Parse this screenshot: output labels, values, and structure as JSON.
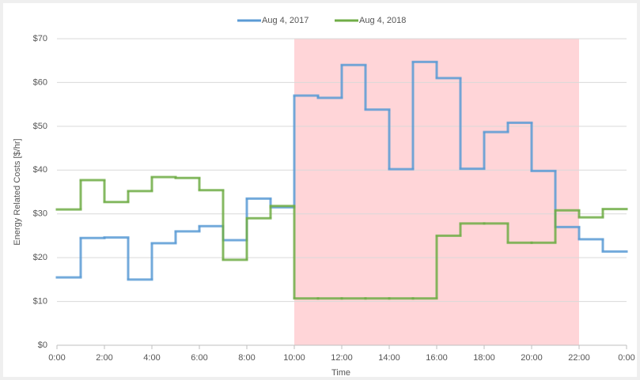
{
  "chart_data": {
    "type": "step",
    "x": [
      0,
      1,
      2,
      3,
      4,
      5,
      6,
      7,
      8,
      9,
      10,
      11,
      12,
      13,
      14,
      15,
      16,
      17,
      18,
      19,
      20,
      21,
      22,
      23
    ],
    "series": [
      {
        "name": "Aug 4, 2017",
        "color": "#5b9bd5",
        "values": [
          15.5,
          24.5,
          24.6,
          15,
          23.3,
          26,
          27.2,
          24,
          33.5,
          31.5,
          57,
          56.5,
          64,
          53.8,
          40.2,
          64.7,
          61,
          40.3,
          48.7,
          50.8,
          39.8,
          27,
          24.2,
          21.4
        ]
      },
      {
        "name": "Aug 4, 2018",
        "color": "#70ad47",
        "values": [
          31,
          37.7,
          32.7,
          35.2,
          38.4,
          38.2,
          35.4,
          19.5,
          29,
          31.8,
          10.7,
          10.7,
          10.7,
          10.7,
          10.7,
          10.7,
          25,
          27.8,
          27.8,
          23.4,
          23.4,
          30.8,
          29.2,
          31.1
        ]
      }
    ],
    "xlim": [
      0,
      24
    ],
    "xticks": [
      {
        "value": 0,
        "label": "0:00"
      },
      {
        "value": 2,
        "label": "2:00"
      },
      {
        "value": 4,
        "label": "4:00"
      },
      {
        "value": 6,
        "label": "6:00"
      },
      {
        "value": 8,
        "label": "8:00"
      },
      {
        "value": 10,
        "label": "10:00"
      },
      {
        "value": 12,
        "label": "12:00"
      },
      {
        "value": 14,
        "label": "14:00"
      },
      {
        "value": 16,
        "label": "16:00"
      },
      {
        "value": 18,
        "label": "18:00"
      },
      {
        "value": 20,
        "label": "20:00"
      },
      {
        "value": 22,
        "label": "22:00"
      },
      {
        "value": 24,
        "label": "0:00"
      }
    ],
    "ylim": [
      0,
      70
    ],
    "yticks": [
      {
        "value": 0,
        "label": "$0"
      },
      {
        "value": 10,
        "label": "$10"
      },
      {
        "value": 20,
        "label": "$20"
      },
      {
        "value": 30,
        "label": "$30"
      },
      {
        "value": 40,
        "label": "$40"
      },
      {
        "value": 50,
        "label": "$50"
      },
      {
        "value": 60,
        "label": "$60"
      },
      {
        "value": 70,
        "label": "$70"
      }
    ],
    "grid": true,
    "shaded_range": [
      10,
      22
    ],
    "shaded_color": "#ffd5d8",
    "xlabel": "Time",
    "ylabel": "Energy Related Costs [$/hr]",
    "legend": "top"
  }
}
